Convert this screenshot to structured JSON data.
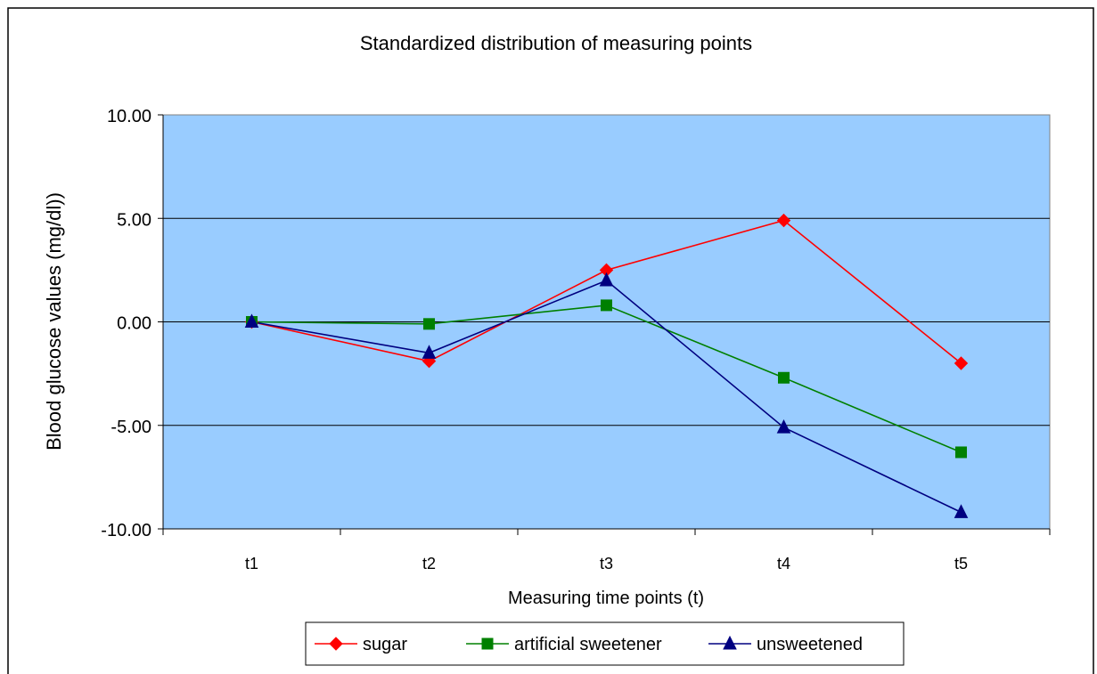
{
  "chart_data": {
    "type": "line",
    "title": "Standardized distribution of measuring points",
    "xlabel": "Measuring time points (t)",
    "ylabel": "Blood glucose values (mg/dl))",
    "categories": [
      "t1",
      "t2",
      "t3",
      "t4",
      "t5"
    ],
    "ylim": [
      -10,
      10
    ],
    "yticks": [
      -10,
      -5,
      0,
      5,
      10
    ],
    "ytick_labels": [
      "-10.00",
      "-5.00",
      "0.00",
      "5.00",
      "10.00"
    ],
    "grid": true,
    "plot_background": "#99CCFF",
    "legend_position": "bottom",
    "series": [
      {
        "name": "sugar",
        "color": "#FF0000",
        "marker": "diamond",
        "values": [
          0.0,
          -1.9,
          2.5,
          4.9,
          -2.0
        ]
      },
      {
        "name": "artificial sweetener",
        "color": "#008000",
        "marker": "square",
        "values": [
          0.0,
          -0.1,
          0.8,
          -2.7,
          -6.3
        ]
      },
      {
        "name": "unsweetened",
        "color": "#000080",
        "marker": "triangle",
        "values": [
          0.0,
          -1.5,
          2.0,
          -5.1,
          -9.2
        ]
      }
    ]
  }
}
